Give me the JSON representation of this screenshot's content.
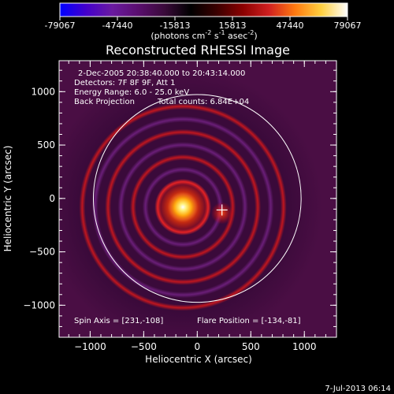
{
  "colorbar": {
    "ticks": [
      "-79067",
      "-47440",
      "-15813",
      "15813",
      "47440",
      "79067"
    ],
    "units_text": "(photons cm",
    "units_exp1": "-2",
    "units_mid": " s",
    "units_exp2": "-1",
    "units_mid2": " asec",
    "units_exp3": "-2",
    "units_close": ")",
    "stops": [
      "#0000ff",
      "#4400cc",
      "#6a1aa0",
      "#5a0e6e",
      "#3a0a3a",
      "#000000",
      "#3a0000",
      "#8a0000",
      "#d02020",
      "#ff7a10",
      "#ffd040",
      "#ffffff"
    ]
  },
  "title": "Reconstructed RHESSI Image",
  "annotations": {
    "date_range": "2-Dec-2005 20:38:40.000 to 20:43:14.000",
    "detectors": "Detectors: 7F 8F 9F, Att 1",
    "energy": "Energy Range: 6.0 - 25.0 keV",
    "method": "Back Projection",
    "counts": "Total counts: 6.84E+04",
    "spin_axis": "Spin Axis = [231,-108]",
    "flare_position": "Flare Position = [-134,-81]"
  },
  "timestamp": "7-Jul-2013 06:14",
  "chart_data": {
    "type": "heatmap",
    "title": "Reconstructed RHESSI Image",
    "xlabel": "Heliocentric X (arcsec)",
    "ylabel": "Heliocentric Y (arcsec)",
    "xlim": [
      -1290,
      1300
    ],
    "ylim": [
      -1300,
      1290
    ],
    "xticks": [
      -1000,
      -500,
      0,
      500,
      1000
    ],
    "yticks": [
      1000,
      500,
      0,
      -500,
      -1000
    ],
    "xtick_labels": [
      "−1000",
      "−500",
      "0",
      "500",
      "1000"
    ],
    "ytick_labels": [
      "1000",
      "500",
      "0",
      "−500",
      "−1000"
    ],
    "value_range": [
      -79067,
      79067
    ],
    "source_position": [
      -134,
      -81
    ],
    "spin_axis": [
      231,
      -108
    ],
    "solar_limb_radius": 970,
    "ring_radii": [
      115,
      235,
      350,
      465,
      580,
      700,
      820,
      940
    ]
  }
}
